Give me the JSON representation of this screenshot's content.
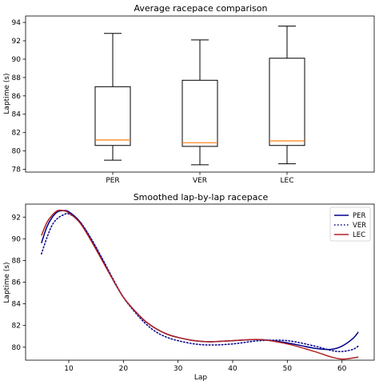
{
  "chart_data": [
    {
      "type": "box",
      "title": "Average racepace comparison",
      "xlabel": "",
      "ylabel": "Laptime (s)",
      "ylim": [
        77.7,
        94.7
      ],
      "yticks": [
        78,
        80,
        82,
        84,
        86,
        88,
        90,
        92,
        94
      ],
      "categories": [
        "PER",
        "VER",
        "LEC"
      ],
      "boxes": [
        {
          "min": 79.0,
          "q1": 80.6,
          "median": 81.2,
          "q3": 87.0,
          "max": 92.8
        },
        {
          "min": 78.5,
          "q1": 80.5,
          "median": 80.9,
          "q3": 87.7,
          "max": 92.1
        },
        {
          "min": 78.6,
          "q1": 80.6,
          "median": 81.1,
          "q3": 90.1,
          "max": 93.6
        }
      ],
      "box_color": "#000000",
      "median_color": "#ff7f0e",
      "grid": false
    },
    {
      "type": "line",
      "title": "Smoothed lap-by-lap racepace",
      "xlabel": "Lap",
      "ylabel": "Laptime (s)",
      "xlim": [
        2.1,
        65.9
      ],
      "ylim": [
        78.8,
        93.2
      ],
      "xticks": [
        10,
        20,
        30,
        40,
        50,
        60
      ],
      "yticks": [
        80,
        82,
        84,
        86,
        88,
        90,
        92
      ],
      "legend_position": "top-right",
      "grid": false,
      "series": [
        {
          "name": "PER",
          "color": "#00008b",
          "dash": "solid",
          "x": [
            5,
            6,
            7,
            8,
            9,
            10,
            12,
            14,
            16,
            18,
            20,
            22,
            24,
            26,
            28,
            30,
            33,
            36,
            40,
            45,
            50,
            55,
            58,
            60,
            62,
            63
          ],
          "y": [
            89.6,
            91.1,
            92.0,
            92.5,
            92.6,
            92.5,
            91.6,
            90.0,
            88.2,
            86.3,
            84.6,
            83.4,
            82.4,
            81.7,
            81.2,
            80.9,
            80.6,
            80.5,
            80.6,
            80.7,
            80.4,
            79.9,
            79.8,
            80.1,
            80.8,
            81.4
          ]
        },
        {
          "name": "VER",
          "color": "#00008b",
          "dash": "dotted",
          "x": [
            5,
            6,
            7,
            8,
            9,
            10,
            12,
            14,
            16,
            18,
            20,
            22,
            24,
            26,
            28,
            30,
            33,
            36,
            40,
            45,
            50,
            55,
            58,
            60,
            62,
            63
          ],
          "y": [
            88.6,
            90.1,
            91.3,
            91.9,
            92.2,
            92.3,
            91.6,
            90.1,
            88.3,
            86.4,
            84.6,
            83.3,
            82.2,
            81.4,
            80.9,
            80.6,
            80.3,
            80.2,
            80.3,
            80.6,
            80.6,
            80.1,
            79.7,
            79.6,
            79.8,
            80.1
          ]
        },
        {
          "name": "LEC",
          "color": "#b22222",
          "dash": "solid",
          "x": [
            5,
            6,
            7,
            8,
            9,
            10,
            12,
            14,
            16,
            18,
            20,
            22,
            24,
            26,
            28,
            30,
            33,
            36,
            40,
            45,
            50,
            55,
            58,
            60,
            62,
            63
          ],
          "y": [
            90.3,
            91.5,
            92.2,
            92.6,
            92.6,
            92.4,
            91.5,
            89.9,
            88.1,
            86.3,
            84.6,
            83.4,
            82.4,
            81.7,
            81.2,
            80.9,
            80.6,
            80.5,
            80.6,
            80.7,
            80.3,
            79.6,
            79.1,
            78.9,
            79.0,
            79.1
          ]
        }
      ]
    }
  ]
}
